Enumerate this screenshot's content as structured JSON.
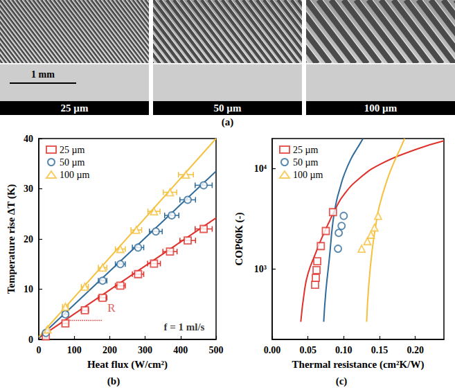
{
  "image_panel": {
    "caption": "(a)",
    "scale_bar": "1 mm",
    "images": [
      "25 µm",
      "50 µm",
      "100 µm"
    ]
  },
  "chart_data": [
    {
      "type": "scatter",
      "caption": "(b)",
      "xlabel": "Heat flux (W/cm²)",
      "ylabel": "Temperature rise ΔT (K)",
      "xlim": [
        0,
        500
      ],
      "xticks": [
        0,
        100,
        200,
        300,
        400,
        500
      ],
      "ylim": [
        0,
        40
      ],
      "yticks": [
        0,
        10,
        20,
        30,
        40
      ],
      "grid": false,
      "legend": "upper left",
      "series": [
        {
          "name": "25 µm",
          "color": "#e0302b",
          "marker": "square",
          "x": [
            20,
            75,
            130,
            180,
            230,
            280,
            325,
            370,
            420,
            465
          ],
          "values": [
            0.6,
            3.2,
            5.8,
            8.3,
            10.7,
            13.0,
            15.1,
            17.5,
            19.7,
            22.0
          ],
          "x_error": [
            3,
            8,
            10,
            12,
            14,
            16,
            18,
            20,
            22,
            24
          ],
          "fit_x": [
            0,
            500
          ],
          "fit_values": [
            0.3,
            24.2
          ]
        },
        {
          "name": "50 µm",
          "color": "#2f6b9a",
          "marker": "circle",
          "x": [
            20,
            75,
            180,
            230,
            280,
            330,
            375,
            420,
            465
          ],
          "values": [
            1.3,
            5.0,
            11.7,
            15.0,
            18.3,
            21.5,
            24.7,
            27.8,
            30.7
          ],
          "x_error": [
            3,
            8,
            12,
            14,
            16,
            18,
            20,
            22,
            24
          ],
          "fit_x": [
            0,
            500
          ],
          "fit_values": [
            0.3,
            33.5
          ]
        },
        {
          "name": "100 µm",
          "color": "#f5c03c",
          "marker": "triangle",
          "x": [
            25,
            75,
            130,
            180,
            230,
            275,
            325,
            370,
            415
          ],
          "values": [
            2.0,
            6.5,
            10.5,
            14.3,
            18.0,
            21.8,
            25.5,
            29.3,
            32.8
          ],
          "x_error": [
            3,
            8,
            10,
            12,
            14,
            15,
            17,
            19,
            21
          ],
          "fit_x": [
            0,
            500
          ],
          "fit_values": [
            0.5,
            40.0
          ]
        }
      ],
      "annotations": [
        {
          "text": "R",
          "x": 205,
          "y": 6.3,
          "color": "#e0302b"
        },
        {
          "text": "f = 1 ml/s",
          "x": 410,
          "y": 2.5
        }
      ],
      "guide": {
        "x": [
          75,
          180
        ],
        "values": [
          3.8,
          3.8
        ],
        "color": "#e0302b",
        "line_style": "dotted"
      }
    },
    {
      "type": "scatter",
      "caption": "(c)",
      "xlabel": "Thermal resistance (cm²K/W)",
      "ylabel": "COP60K (-)",
      "log": "y",
      "xlim": [
        0,
        0.24
      ],
      "xticks": [
        {
          "value": 0,
          "label": "0.00"
        },
        {
          "value": 0.05,
          "label": "0.05"
        },
        {
          "value": 0.1,
          "label": "0.10"
        },
        {
          "value": 0.15,
          "label": "0.15"
        },
        {
          "value": 0.2,
          "label": "0.20"
        }
      ],
      "ylim": [
        200,
        20000
      ],
      "yticks": [
        {
          "value": 1000,
          "label": "10³"
        },
        {
          "value": 10000,
          "label": "10⁴"
        }
      ],
      "grid": false,
      "legend": "upper left",
      "series": [
        {
          "name": "25 µm",
          "color": "#e0302b",
          "marker": "square",
          "x": [
            0.06,
            0.061,
            0.062,
            0.063,
            0.068,
            0.075,
            0.085
          ],
          "values": [
            700,
            820,
            980,
            1200,
            1700,
            2400,
            3700
          ],
          "fit_x": [
            0.04,
            0.045,
            0.05,
            0.06,
            0.07,
            0.08,
            0.09,
            0.1,
            0.12,
            0.15,
            0.2,
            0.24
          ],
          "fit_values": [
            300,
            600,
            900,
            1400,
            2100,
            3000,
            4200,
            5500,
            7800,
            11000,
            15500,
            19000
          ]
        },
        {
          "name": "50 µm",
          "color": "#2f6b9a",
          "marker": "circle",
          "x": [
            0.092,
            0.093,
            0.097,
            0.1
          ],
          "values": [
            1600,
            2300,
            2700,
            3400
          ],
          "fit_x": [
            0.072,
            0.075,
            0.08,
            0.085,
            0.09,
            0.095,
            0.1,
            0.11,
            0.12,
            0.127
          ],
          "fit_values": [
            300,
            600,
            1300,
            3000,
            4800,
            6500,
            8500,
            12500,
            16500,
            20000
          ]
        },
        {
          "name": "100 µm",
          "color": "#f5c03c",
          "marker": "triangle",
          "x": [
            0.125,
            0.133,
            0.138,
            0.143,
            0.148
          ],
          "values": [
            1600,
            1900,
            2200,
            2600,
            3400
          ],
          "fit_x": [
            0.132,
            0.135,
            0.14,
            0.145,
            0.15,
            0.16,
            0.17,
            0.18,
            0.185
          ],
          "fit_values": [
            300,
            700,
            1600,
            2800,
            4300,
            7500,
            11500,
            16500,
            20000
          ]
        }
      ]
    }
  ]
}
